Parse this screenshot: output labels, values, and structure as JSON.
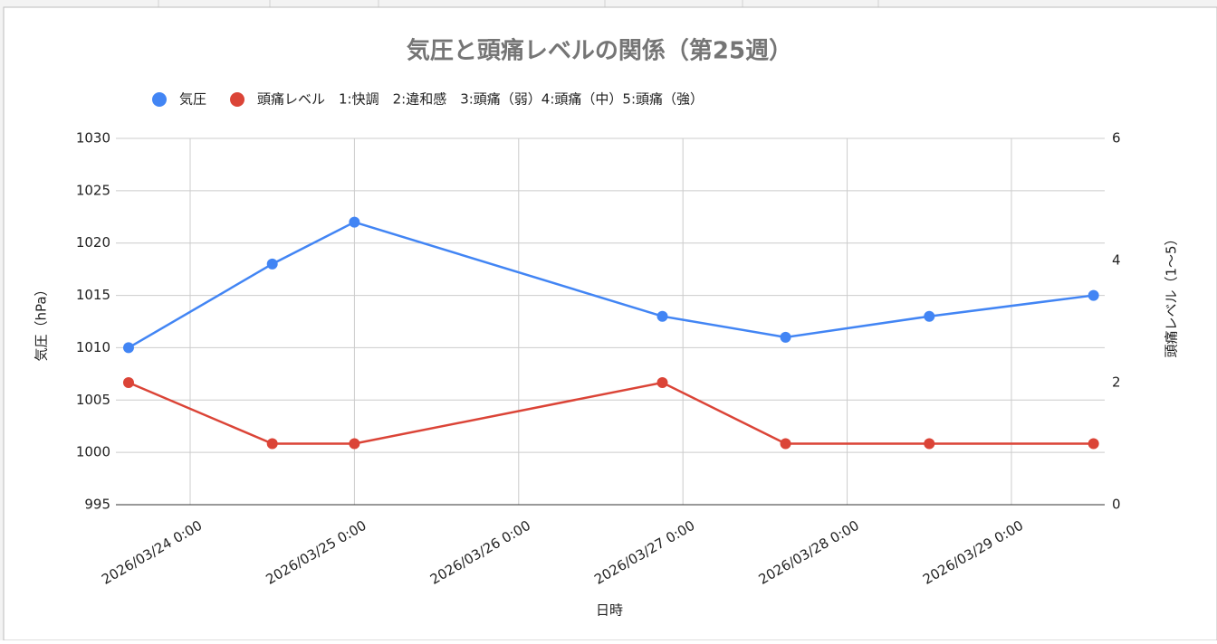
{
  "chart_data": {
    "type": "line",
    "title": "気圧と頭痛レベルの関係（第25週）",
    "xlabel": "日時",
    "ylabel": "気圧（hPa）",
    "y2label": "頭痛レベル（1〜5）",
    "x": [
      "2026-03-23T15:00",
      "2026-03-24T12:00",
      "2026-03-25T00:00",
      "2026-03-26T21:00",
      "2026-03-27T15:00",
      "2026-03-28T12:00",
      "2026-03-29T12:00"
    ],
    "xlim": [
      "2026-03-23T13:09",
      "2026-03-29T13:38"
    ],
    "xticks": [
      {
        "value": "2026-03-24T00:00",
        "label": "2026/03/24 0:00"
      },
      {
        "value": "2026-03-25T00:00",
        "label": "2026/03/25 0:00"
      },
      {
        "value": "2026-03-26T00:00",
        "label": "2026/03/26 0:00"
      },
      {
        "value": "2026-03-27T00:00",
        "label": "2026/03/27 0:00"
      },
      {
        "value": "2026-03-28T00:00",
        "label": "2026/03/28 0:00"
      },
      {
        "value": "2026-03-29T00:00",
        "label": "2026/03/29 0:00"
      }
    ],
    "ylim": [
      995,
      1030
    ],
    "yticks": [
      995,
      1000,
      1005,
      1010,
      1015,
      1020,
      1025,
      1030
    ],
    "y2lim": [
      0,
      6
    ],
    "y2ticks": [
      0,
      2,
      4,
      6
    ],
    "grid": true,
    "legend": "top",
    "series": [
      {
        "name": "気圧",
        "color": "#4285f4",
        "values": [
          1010,
          1018,
          1022,
          1013,
          1011,
          1013,
          1015
        ]
      },
      {
        "name": "頭痛レベル　1:快調　2:違和感　3:頭痛（弱）4:頭痛（中）5:頭痛（強）",
        "color": "#db4437",
        "axis": "y2",
        "values": [
          2,
          1,
          1,
          2,
          1,
          1,
          1
        ]
      }
    ]
  }
}
